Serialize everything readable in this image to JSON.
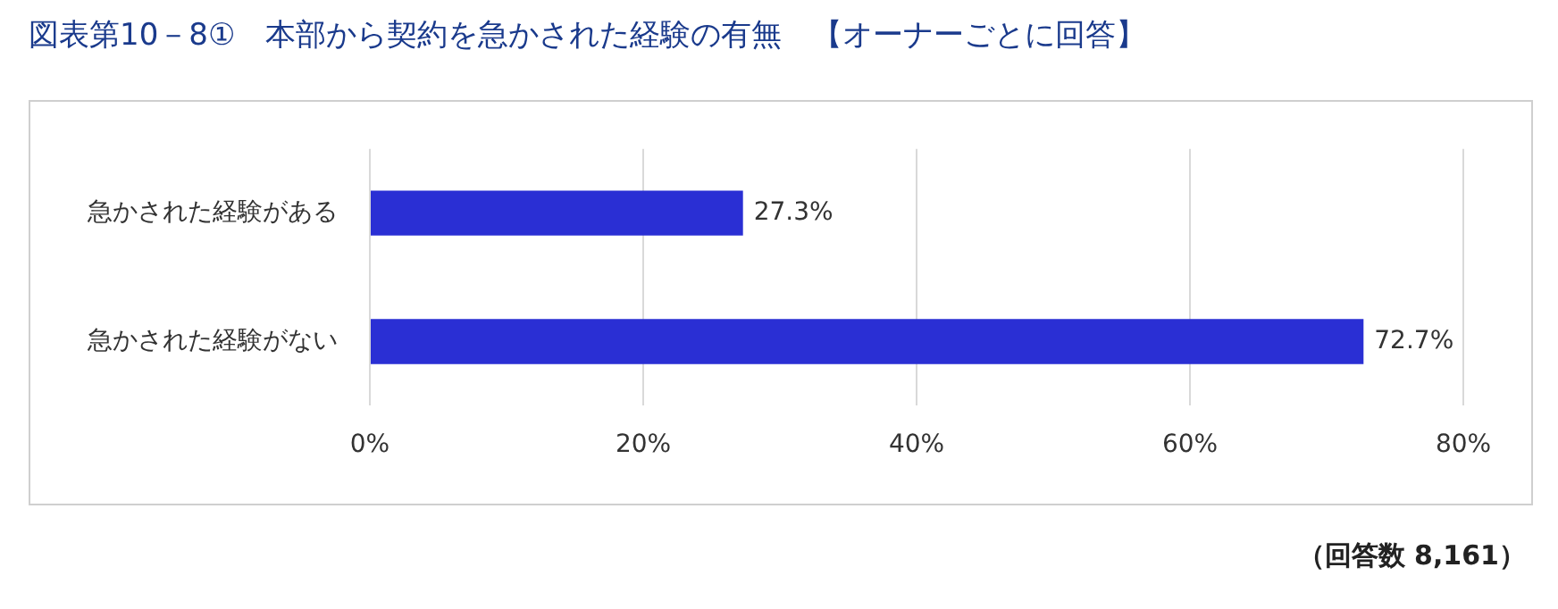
{
  "chart_data": {
    "type": "bar",
    "orientation": "horizontal",
    "title": "図表第10－8①　本部から契約を急かされた経験の有無　【オーナーごとに回答】",
    "categories": [
      "急かされた経験がある",
      "急かされた経験がない"
    ],
    "values": [
      27.3,
      72.7
    ],
    "value_labels": [
      "27.3%",
      "72.7%"
    ],
    "color": "#2a2fd4",
    "xlim": [
      0,
      80
    ],
    "xticks": [
      {
        "value": 0,
        "label": "0%"
      },
      {
        "value": 20,
        "label": "20%"
      },
      {
        "value": 40,
        "label": "40%"
      },
      {
        "value": 60,
        "label": "60%"
      },
      {
        "value": 80,
        "label": "80%"
      }
    ],
    "grid": "x",
    "legend": false,
    "annotations": [
      "（回答数 8,161）"
    ]
  }
}
